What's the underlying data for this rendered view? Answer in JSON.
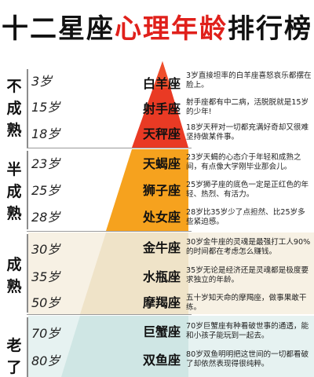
{
  "title": {
    "part1": "十二星座",
    "part2": "心理年龄",
    "part3": "排行榜"
  },
  "colors": {
    "accent_red": "#e0201b",
    "tier_red": "#e93a24",
    "tier_orange": "#f6a21e",
    "tier_beige": "#efe3c8",
    "tier_teal": "#cfe6e4",
    "band_light": "#f7f1e4",
    "band_light_teal": "#e6f2f1"
  },
  "groups": [
    {
      "label": [
        "不",
        "成",
        "熟"
      ]
    },
    {
      "label": [
        "半",
        "成",
        "熟"
      ]
    },
    {
      "label": [
        "成",
        "熟"
      ]
    },
    {
      "label": [
        "老",
        "了"
      ]
    }
  ],
  "rows": [
    {
      "age": "3岁",
      "sign": "白羊座",
      "desc": "3岁直接坦率的白羊座喜怒哀乐都摆在脸上。"
    },
    {
      "age": "15岁",
      "sign": "射手座",
      "desc": "射手座都有中二病，活脱脱就是15岁的少年!"
    },
    {
      "age": "18岁",
      "sign": "天秤座",
      "desc": "18岁天秤对一切都充满好奇却又很难坚持做某件事。"
    },
    {
      "age": "23岁",
      "sign": "天蝎座",
      "desc": "23岁天蝎的心态介于年轻和成熟之间，有点像大学刚毕业那会儿。"
    },
    {
      "age": "25岁",
      "sign": "狮子座",
      "desc": "25岁狮子座的底色一定是正红色的年轻、热烈、有活力。"
    },
    {
      "age": "28岁",
      "sign": "处女座",
      "desc": "28岁比35岁少了点担然、比25岁多些紧迫感。"
    },
    {
      "age": "30岁",
      "sign": "金牛座",
      "desc": "30岁金牛座的灵魂是最强打工人90%的时间都在考虑怎么赚钱。"
    },
    {
      "age": "35岁",
      "sign": "水瓶座",
      "desc": "35岁无论是经济还是灵魂都是极度要求独立的年龄。"
    },
    {
      "age": "50岁",
      "sign": "摩羯座",
      "desc": "五十岁知天命的摩羯座，做事果敢干练。"
    },
    {
      "age": "70岁",
      "sign": "巨蟹座",
      "desc": "70岁巨蟹座有种看破世事的通透，能和小孩子能玩到一起去。"
    },
    {
      "age": "80岁",
      "sign": "双鱼座",
      "desc": "80岁双鱼明明把这世间的一切都看破了却依然表现得很纯粹。"
    }
  ]
}
